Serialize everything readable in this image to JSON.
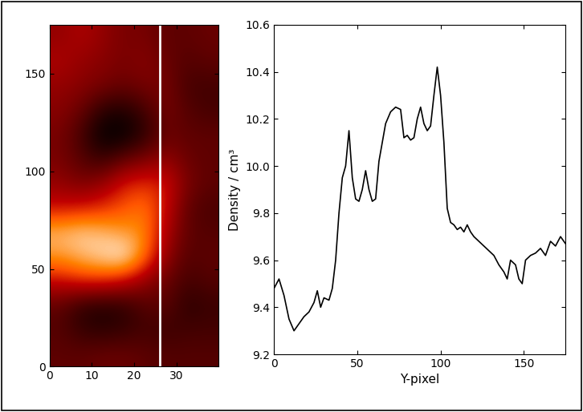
{
  "chart_data": [
    {
      "type": "heatmap",
      "xlim": [
        0,
        40
      ],
      "ylim": [
        0,
        175
      ],
      "xticks": [
        0,
        10,
        20,
        30
      ],
      "yticks": [
        0,
        50,
        100,
        150
      ],
      "slit_x": 26,
      "cells": [
        [
          0.4,
          0.4,
          0.42,
          0.42,
          0.4,
          0.38,
          0.38,
          0.38
        ],
        [
          0.38,
          0.32,
          0.3,
          0.32,
          0.35,
          0.33,
          0.35,
          0.35
        ],
        [
          0.4,
          0.3,
          0.28,
          0.3,
          0.38,
          0.4,
          0.3,
          0.33
        ],
        [
          0.6,
          0.65,
          0.65,
          0.6,
          0.5,
          0.42,
          0.35,
          0.38
        ],
        [
          0.8,
          0.85,
          0.9,
          0.95,
          0.75,
          0.5,
          0.38,
          0.4
        ],
        [
          0.85,
          0.88,
          0.85,
          0.8,
          0.78,
          0.55,
          0.4,
          0.38
        ],
        [
          0.6,
          0.62,
          0.65,
          0.7,
          0.75,
          0.6,
          0.4,
          0.36
        ],
        [
          0.5,
          0.45,
          0.5,
          0.62,
          0.65,
          0.62,
          0.45,
          0.4
        ],
        [
          0.45,
          0.38,
          0.32,
          0.4,
          0.45,
          0.5,
          0.42,
          0.4
        ],
        [
          0.45,
          0.35,
          0.22,
          0.22,
          0.3,
          0.42,
          0.4,
          0.4
        ],
        [
          0.48,
          0.42,
          0.3,
          0.28,
          0.35,
          0.45,
          0.38,
          0.35
        ],
        [
          0.5,
          0.48,
          0.45,
          0.42,
          0.45,
          0.45,
          0.35,
          0.35
        ],
        [
          0.55,
          0.5,
          0.48,
          0.45,
          0.48,
          0.42,
          0.38,
          0.4
        ],
        [
          0.5,
          0.55,
          0.5,
          0.45,
          0.45,
          0.4,
          0.4,
          0.42
        ]
      ]
    },
    {
      "type": "line",
      "xlabel": "Y-pixel",
      "ylabel": "Density / cm³",
      "color": "#000000",
      "xlim": [
        0,
        175
      ],
      "ylim": [
        9.2,
        10.6
      ],
      "xticks": [
        0,
        50,
        100,
        150
      ],
      "yticks": [
        9.2,
        9.4,
        9.6,
        9.8,
        10.0,
        10.2,
        10.4,
        10.6
      ],
      "x": [
        0,
        3,
        6,
        9,
        12,
        15,
        18,
        21,
        24,
        26,
        28,
        30,
        33,
        35,
        37,
        39,
        41,
        43,
        45,
        47,
        49,
        51,
        53,
        55,
        57,
        59,
        61,
        63,
        65,
        67,
        70,
        73,
        76,
        78,
        80,
        82,
        84,
        86,
        88,
        90,
        92,
        94,
        96,
        98,
        100,
        102,
        104,
        106,
        108,
        110,
        112,
        114,
        116,
        118,
        120,
        123,
        126,
        129,
        132,
        135,
        138,
        140,
        142,
        145,
        147,
        149,
        151,
        154,
        157,
        160,
        163,
        166,
        169,
        172,
        175
      ],
      "values": [
        9.48,
        9.52,
        9.45,
        9.35,
        9.3,
        9.33,
        9.36,
        9.38,
        9.42,
        9.47,
        9.4,
        9.44,
        9.43,
        9.48,
        9.6,
        9.8,
        9.95,
        10.0,
        10.15,
        9.95,
        9.86,
        9.85,
        9.9,
        9.98,
        9.9,
        9.85,
        9.86,
        10.02,
        10.1,
        10.18,
        10.23,
        10.25,
        10.24,
        10.12,
        10.13,
        10.11,
        10.12,
        10.2,
        10.25,
        10.18,
        10.15,
        10.17,
        10.3,
        10.42,
        10.3,
        10.1,
        9.82,
        9.76,
        9.75,
        9.73,
        9.74,
        9.72,
        9.75,
        9.72,
        9.7,
        9.68,
        9.66,
        9.64,
        9.62,
        9.58,
        9.55,
        9.52,
        9.6,
        9.58,
        9.52,
        9.5,
        9.6,
        9.62,
        9.63,
        9.65,
        9.62,
        9.68,
        9.66,
        9.7,
        9.67
      ]
    }
  ]
}
